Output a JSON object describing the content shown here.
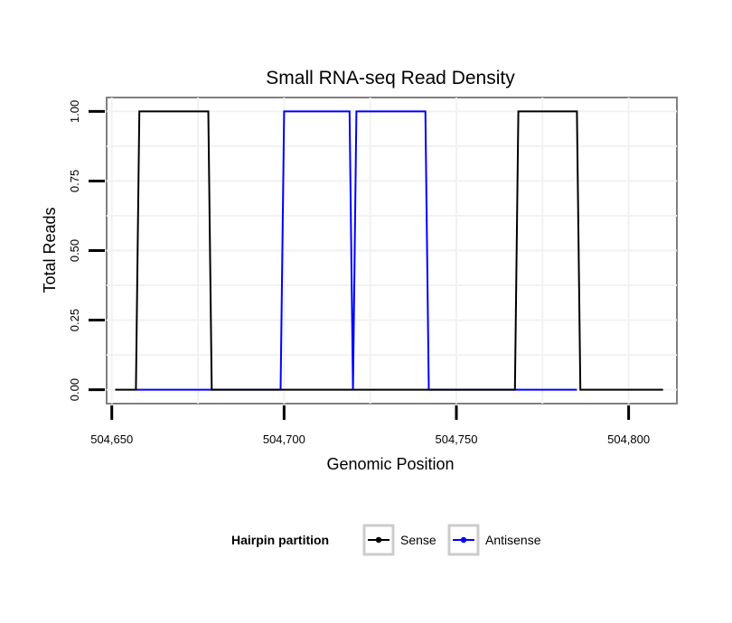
{
  "chart_data": {
    "type": "line",
    "title": "Small RNA-seq Read Density",
    "xlabel": "Genomic Position",
    "ylabel": "Total Reads",
    "xlim": [
      504648.5,
      504814
    ],
    "ylim": [
      -0.05,
      1.05
    ],
    "xticks": [
      504650,
      504700,
      504750,
      504800
    ],
    "xtick_labels": [
      "504,650",
      "504,700",
      "504,750",
      "504,800"
    ],
    "yticks": [
      0,
      0.25,
      0.5,
      0.75,
      1.0
    ],
    "ytick_labels": [
      "0.00",
      "0.25",
      "0.50",
      "0.75",
      "1.00"
    ],
    "grid": true,
    "legend": {
      "title": "Hairpin partition",
      "position": "bottom",
      "entries": [
        "Sense",
        "Antisense"
      ]
    },
    "series": [
      {
        "name": "Sense",
        "color": "#000000",
        "x": [
          504651,
          504657,
          504658,
          504678,
          504679,
          504767,
          504768,
          504785,
          504786,
          504810
        ],
        "y": [
          0,
          0,
          1,
          1,
          0,
          0,
          1,
          1,
          0,
          0
        ]
      },
      {
        "name": "Antisense",
        "color": "#0000ff",
        "x": [
          504657,
          504699,
          504700,
          504719,
          504720,
          504721,
          504741,
          504742,
          504785
        ],
        "y": [
          0,
          0,
          1,
          1,
          0,
          1,
          1,
          0,
          0
        ]
      }
    ]
  }
}
